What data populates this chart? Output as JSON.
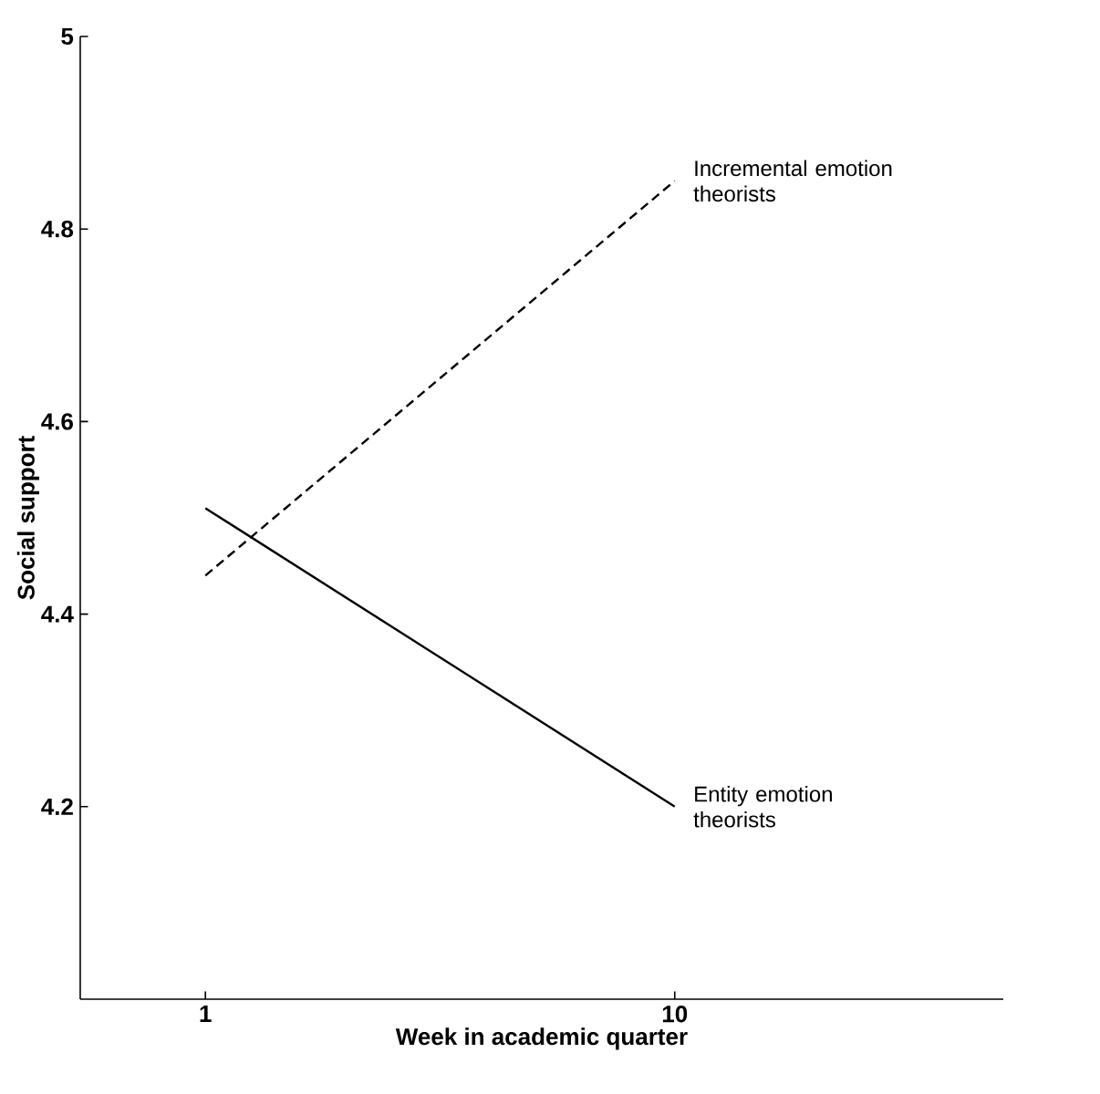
{
  "chart_data": {
    "type": "line",
    "xlabel": "Week in academic quarter",
    "ylabel": "Social support",
    "x": [
      1,
      10
    ],
    "xlim": [
      -1.4,
      16.3
    ],
    "xticks": [
      1,
      10
    ],
    "ylim": [
      4,
      5
    ],
    "yticks": [
      4.2,
      4.4,
      4.6,
      4.8,
      5
    ],
    "legend": false,
    "grid": false,
    "series": [
      {
        "name": "Incremental emotion theorists",
        "color": "#000000",
        "line_style": "dashed",
        "values": [
          4.44,
          4.85
        ]
      },
      {
        "name": "Entity emotion theorists",
        "color": "#000000",
        "line_style": "solid",
        "values": [
          4.51,
          4.2
        ]
      }
    ]
  }
}
